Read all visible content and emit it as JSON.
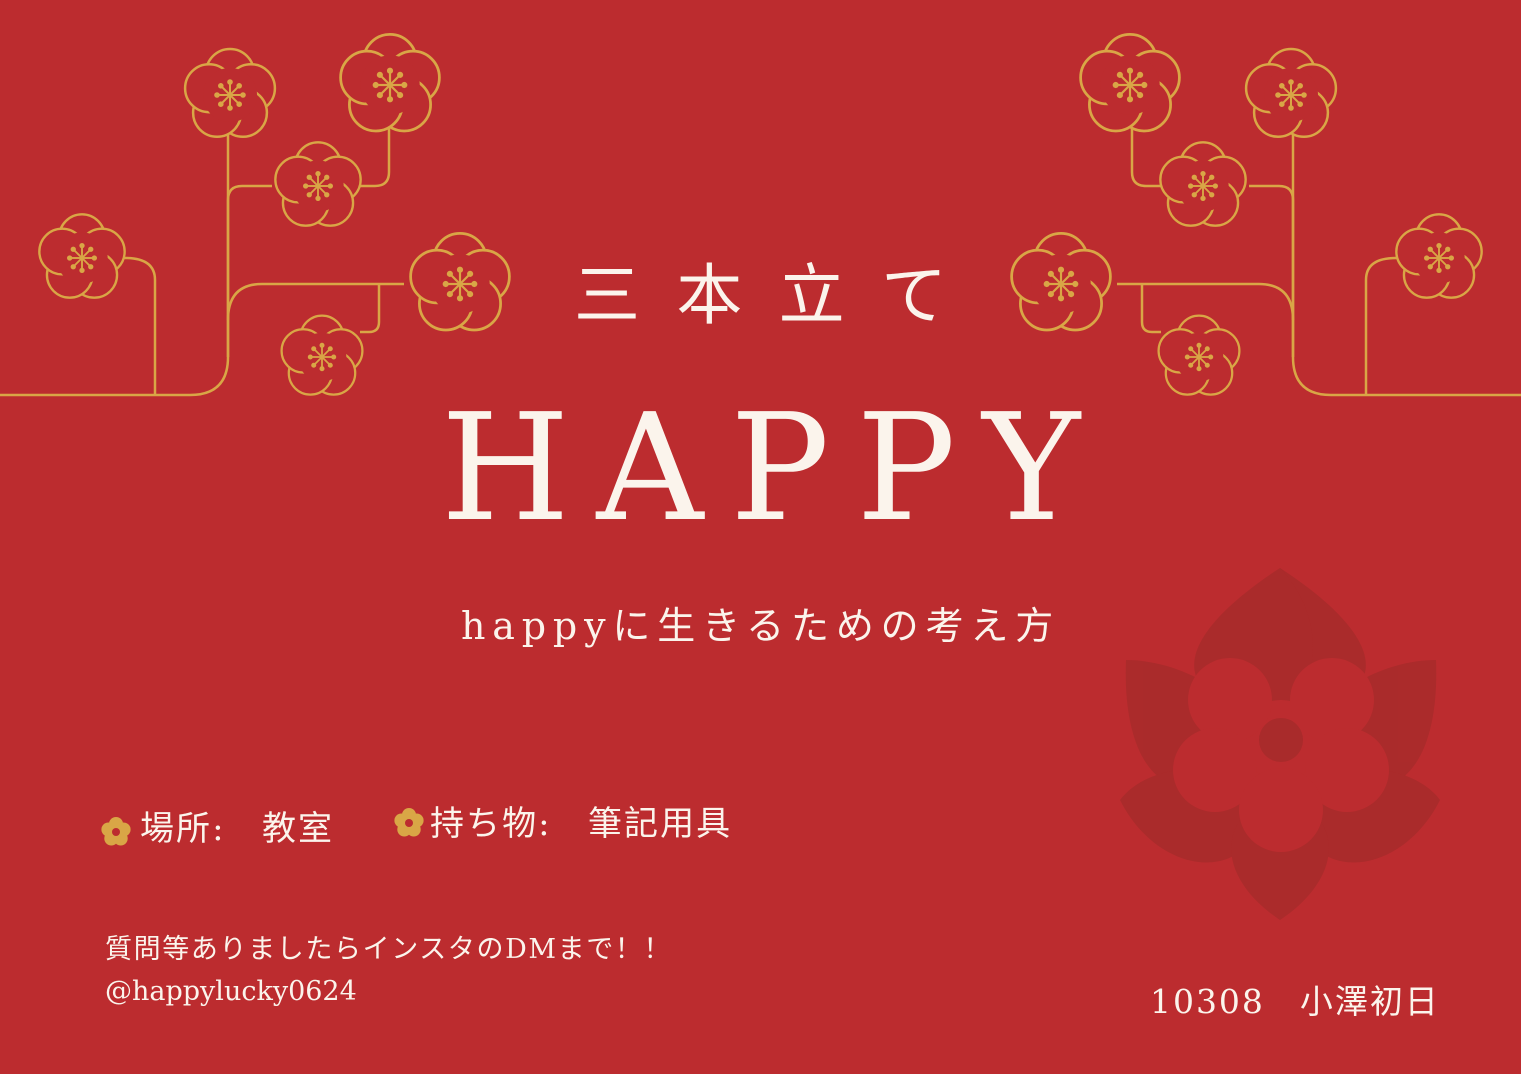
{
  "colors": {
    "background": "#bc2c2f",
    "gold": "#d9a646",
    "text": "#fbf4ec",
    "watermark": "#a92b2b"
  },
  "header": {
    "subtitle": "三本立て",
    "title": "HAPPY",
    "tagline": "happyに生きるための考え方"
  },
  "info": {
    "place_label": "場所:",
    "place_value": "教室",
    "items_label": "持ち物:",
    "items_value": "筆記用具"
  },
  "contact": {
    "line1": "質問等ありましたらインスタのDMまで！！",
    "handle": "@happylucky0624"
  },
  "author": "10308　小澤初日",
  "icons": {
    "decoration": "plum-blossom-icon",
    "bullet": "flower-bullet-icon",
    "watermark": "large-flower-icon"
  }
}
